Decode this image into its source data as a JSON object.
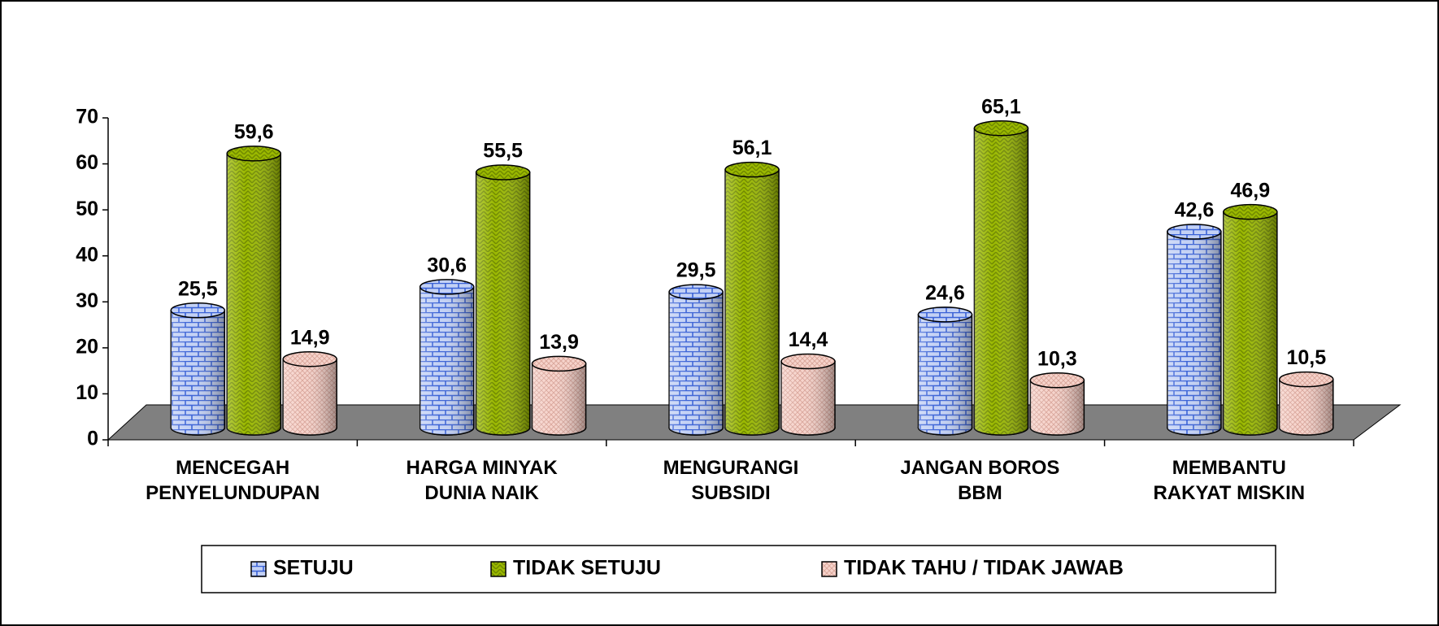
{
  "chart_data": {
    "type": "bar3d",
    "categories": [
      "MENCEGAH\nPENYELUNDUPAN",
      "HARGA MINYAK\nDUNIA NAIK",
      "MENGURANGI\nSUBSIDI",
      "JANGAN BOROS\nBBM",
      "MEMBANTU\nRAKYAT MISKIN"
    ],
    "series": [
      {
        "name": "SETUJU",
        "color": "#b9c9f2",
        "values": [
          25.5,
          30.6,
          29.5,
          24.6,
          42.6
        ],
        "value_labels": [
          "25,5",
          "30,6",
          "29,5",
          "24,6",
          "42,6"
        ]
      },
      {
        "name": "TIDAK SETUJU",
        "color": "#9ab800",
        "values": [
          59.6,
          55.5,
          56.1,
          65.1,
          46.9
        ],
        "value_labels": [
          "59,6",
          "55,5",
          "56,1",
          "65,1",
          "46,9"
        ]
      },
      {
        "name": "TIDAK TAHU / TIDAK JAWAB",
        "color": "#f4cdc4",
        "values": [
          14.9,
          13.9,
          14.4,
          10.3,
          10.5
        ],
        "value_labels": [
          "14,9",
          "13,9",
          "14,4",
          "10,3",
          "10,5"
        ]
      }
    ],
    "ylim": [
      0,
      70
    ],
    "yticks": [
      0,
      10,
      20,
      30,
      40,
      50,
      60,
      70
    ],
    "legend": "bottom"
  }
}
